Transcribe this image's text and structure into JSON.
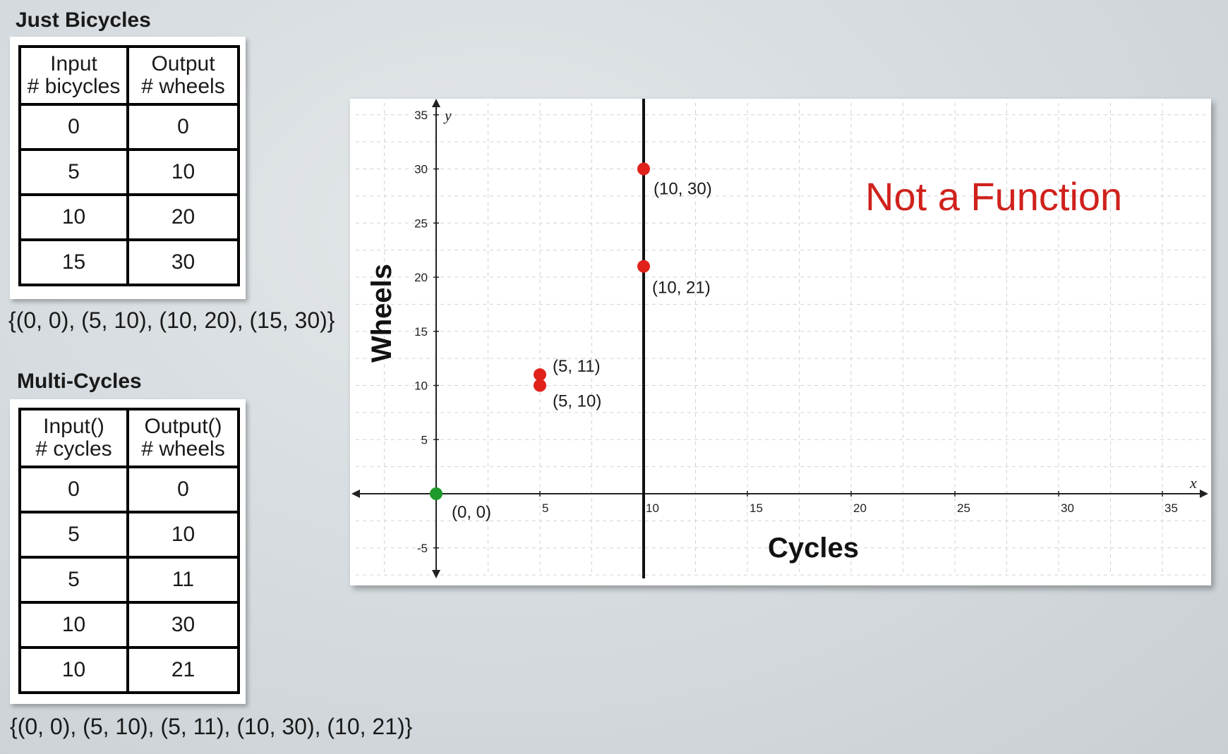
{
  "tables": [
    {
      "title": "Just Bicycles",
      "headers": [
        [
          "Input",
          "# bicycles"
        ],
        [
          "Output",
          "# wheels"
        ]
      ],
      "rows": [
        [
          "0",
          "0"
        ],
        [
          "5",
          "10"
        ],
        [
          "10",
          "20"
        ],
        [
          "15",
          "30"
        ]
      ],
      "set_notation": "{(0, 0), (5, 10), (10, 20), (15, 30)}"
    },
    {
      "title": "Multi-Cycles",
      "headers": [
        [
          "Input()",
          "# cycles"
        ],
        [
          "Output()",
          "# wheels"
        ]
      ],
      "rows": [
        [
          "0",
          "0"
        ],
        [
          "5",
          "10"
        ],
        [
          "5",
          "11"
        ],
        [
          "10",
          "30"
        ],
        [
          "10",
          "21"
        ]
      ],
      "set_notation": "{(0, 0), (5, 10), (5, 11), (10, 30), (10, 21)}"
    }
  ],
  "chart_data": {
    "type": "scatter",
    "title": "",
    "xlabel": "Cycles",
    "ylabel": "Wheels",
    "x_var": "x",
    "y_var": "y",
    "xlim": [
      -4,
      37
    ],
    "ylim": [
      -8,
      36
    ],
    "x_ticks": [
      5,
      10,
      15,
      20,
      25,
      30,
      35
    ],
    "y_ticks": [
      -5,
      5,
      10,
      15,
      20,
      25,
      30,
      35
    ],
    "grid": true,
    "points": [
      {
        "x": 0,
        "y": 0,
        "label": "(0, 0)",
        "color": "#1e9a2a"
      },
      {
        "x": 5,
        "y": 10,
        "label": "(5, 10)",
        "color": "#e0221b"
      },
      {
        "x": 5,
        "y": 11,
        "label": "(5, 11)",
        "color": "#e0221b"
      },
      {
        "x": 10,
        "y": 30,
        "label": "(10, 30)",
        "color": "#e0221b"
      },
      {
        "x": 10,
        "y": 21,
        "label": "(10, 21)",
        "color": "#e0221b"
      }
    ],
    "vertical_line_x": 10,
    "annotation": "Not a Function",
    "annotation_color": "#d0211c"
  }
}
